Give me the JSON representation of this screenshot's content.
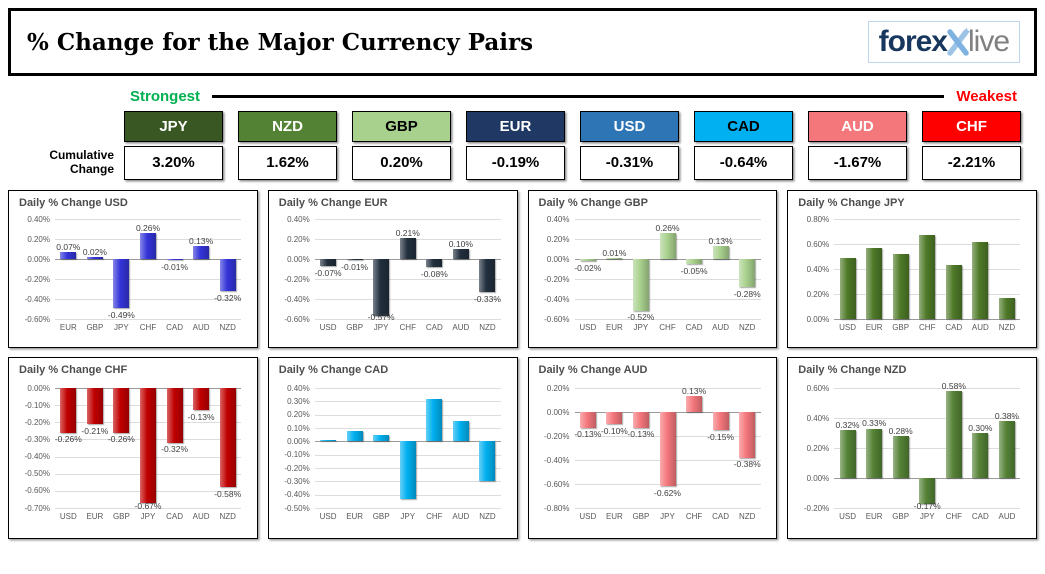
{
  "header": {
    "title": "% Change for the Major Currency Pairs",
    "logo": {
      "forex": "forex",
      "live": "live",
      "navy": "#17375e",
      "gray": "#808080",
      "x_blue": "#9dc3e6"
    }
  },
  "scale": {
    "strongest": "Strongest",
    "weakest": "Weakest",
    "strongest_color": "#00b050",
    "weakest_color": "#ff0000"
  },
  "cumulative": {
    "label": "Cumulative Change",
    "items": [
      {
        "code": "JPY",
        "value": "3.20%",
        "bg": "#385723",
        "fg": "#ffffff"
      },
      {
        "code": "NZD",
        "value": "1.62%",
        "bg": "#548235",
        "fg": "#ffffff"
      },
      {
        "code": "GBP",
        "value": "0.20%",
        "bg": "#a9d18e",
        "fg": "#000000"
      },
      {
        "code": "EUR",
        "value": "-0.19%",
        "bg": "#1f3864",
        "fg": "#ffffff"
      },
      {
        "code": "USD",
        "value": "-0.31%",
        "bg": "#2e75b6",
        "fg": "#ffffff"
      },
      {
        "code": "CAD",
        "value": "-0.64%",
        "bg": "#00b0f0",
        "fg": "#000000"
      },
      {
        "code": "AUD",
        "value": "-1.67%",
        "bg": "#f4777c",
        "fg": "#ffffff"
      },
      {
        "code": "CHF",
        "value": "-2.21%",
        "bg": "#ff0000",
        "fg": "#ffffff"
      }
    ]
  },
  "chart_data": [
    {
      "type": "bar",
      "key": "usd",
      "title": "Daily % Change USD",
      "categories": [
        "EUR",
        "GBP",
        "JPY",
        "CHF",
        "CAD",
        "AUD",
        "NZD"
      ],
      "values": [
        0.07,
        0.02,
        -0.49,
        0.26,
        -0.01,
        0.13,
        -0.32
      ],
      "labels": [
        "0.07%",
        "0.02%",
        "-0.49%",
        "0.26%",
        "-0.01%",
        "0.13%",
        "-0.32%"
      ],
      "bar_color": "#3434d9",
      "ylim": [
        -0.6,
        0.4
      ],
      "ytick_step": 0.2,
      "grid": true,
      "legend": false
    },
    {
      "type": "bar",
      "key": "eur",
      "title": "Daily % Change EUR",
      "categories": [
        "USD",
        "GBP",
        "JPY",
        "CHF",
        "CAD",
        "AUD",
        "NZD"
      ],
      "values": [
        -0.07,
        -0.01,
        -0.57,
        0.21,
        -0.08,
        0.1,
        -0.33
      ],
      "labels": [
        "-0.07%",
        "-0.01%",
        "-0.57%",
        "0.21%",
        "-0.08%",
        "0.10%",
        "-0.33%"
      ],
      "bar_color": "#222f3e",
      "ylim": [
        -0.6,
        0.4
      ],
      "ytick_step": 0.2,
      "grid": true,
      "legend": false
    },
    {
      "type": "bar",
      "key": "gbp",
      "title": "Daily % Change GBP",
      "categories": [
        "USD",
        "EUR",
        "JPY",
        "CHF",
        "CAD",
        "AUD",
        "NZD"
      ],
      "values": [
        -0.02,
        0.01,
        -0.52,
        0.26,
        -0.05,
        0.13,
        -0.28
      ],
      "labels": [
        "-0.02%",
        "0.01%",
        "-0.52%",
        "0.26%",
        "-0.05%",
        "0.13%",
        "-0.28%"
      ],
      "bar_color": "#a9d18e",
      "ylim": [
        -0.6,
        0.4
      ],
      "ytick_step": 0.2,
      "grid": true,
      "legend": false
    },
    {
      "type": "bar",
      "key": "jpy",
      "title": "Daily % Change JPY",
      "categories": [
        "USD",
        "EUR",
        "GBP",
        "CHF",
        "CAD",
        "AUD",
        "NZD"
      ],
      "values": [
        0.49,
        0.57,
        0.52,
        0.67,
        0.43,
        0.62,
        0.17
      ],
      "labels": null,
      "bar_color": "#4f7a28",
      "ylim": [
        0.0,
        0.8
      ],
      "ytick_step": 0.2,
      "grid": true,
      "legend": false
    },
    {
      "type": "bar",
      "key": "chf",
      "title": "Daily % Change CHF",
      "categories": [
        "USD",
        "EUR",
        "GBP",
        "JPY",
        "CAD",
        "AUD",
        "NZD"
      ],
      "values": [
        -0.26,
        -0.21,
        -0.26,
        -0.67,
        -0.32,
        -0.13,
        -0.58
      ],
      "labels": [
        "-0.26%",
        "-0.21%",
        "-0.26%",
        "-0.67%",
        "-0.32%",
        "-0.13%",
        "-0.58%"
      ],
      "bar_color": "#c00000",
      "ylim": [
        -0.7,
        0.0
      ],
      "ytick_step": 0.1,
      "grid": true,
      "legend": false
    },
    {
      "type": "bar",
      "key": "cad",
      "title": "Daily % Change CAD",
      "categories": [
        "USD",
        "EUR",
        "GBP",
        "JPY",
        "CHF",
        "AUD",
        "NZD"
      ],
      "values": [
        0.01,
        0.08,
        0.05,
        -0.43,
        0.32,
        0.15,
        -0.3
      ],
      "labels": null,
      "bar_color": "#00b0f0",
      "ylim": [
        -0.5,
        0.4
      ],
      "ytick_step": 0.1,
      "grid": true,
      "legend": false
    },
    {
      "type": "bar",
      "key": "aud",
      "title": "Daily % Change AUD",
      "categories": [
        "USD",
        "EUR",
        "GBP",
        "JPY",
        "CHF",
        "CAD",
        "NZD"
      ],
      "values": [
        -0.13,
        -0.1,
        -0.13,
        -0.62,
        0.13,
        -0.15,
        -0.38
      ],
      "labels": [
        "-0.13%",
        "-0.10%",
        "-0.13%",
        "-0.62%",
        "0.13%",
        "-0.15%",
        "-0.38%"
      ],
      "bar_color": "#f4777c",
      "ylim": [
        -0.8,
        0.2
      ],
      "ytick_step": 0.2,
      "grid": true,
      "legend": false
    },
    {
      "type": "bar",
      "key": "nzd",
      "title": "Daily % Change NZD",
      "categories": [
        "USD",
        "EUR",
        "GBP",
        "JPY",
        "CHF",
        "CAD",
        "AUD"
      ],
      "values": [
        0.32,
        0.33,
        0.28,
        -0.17,
        0.58,
        0.3,
        0.38
      ],
      "labels": [
        "0.32%",
        "0.33%",
        "0.28%",
        "-0.17%",
        "0.58%",
        "0.30%",
        "0.38%"
      ],
      "bar_color": "#548235",
      "ylim": [
        -0.2,
        0.6
      ],
      "ytick_step": 0.2,
      "grid": true,
      "legend": false
    }
  ]
}
